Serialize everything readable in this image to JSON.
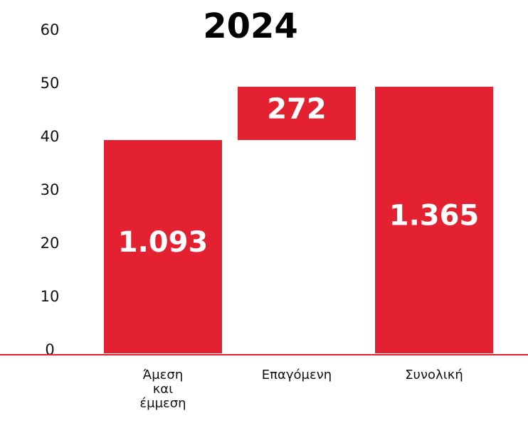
{
  "chart_data": {
    "type": "waterfall",
    "title": "2024",
    "categories": [
      "Άμεση και έμμεση",
      "Επαγόμενη",
      "Συνολική"
    ],
    "values": [
      40,
      10,
      50
    ],
    "value_labels": [
      "1.093",
      "272",
      "1.365"
    ],
    "measure": [
      "relative",
      "relative",
      "total"
    ],
    "color": "#e32130",
    "ylim": [
      0,
      60
    ],
    "yticks": [
      0,
      10,
      20,
      30,
      40,
      50,
      60
    ],
    "grid": false
  }
}
